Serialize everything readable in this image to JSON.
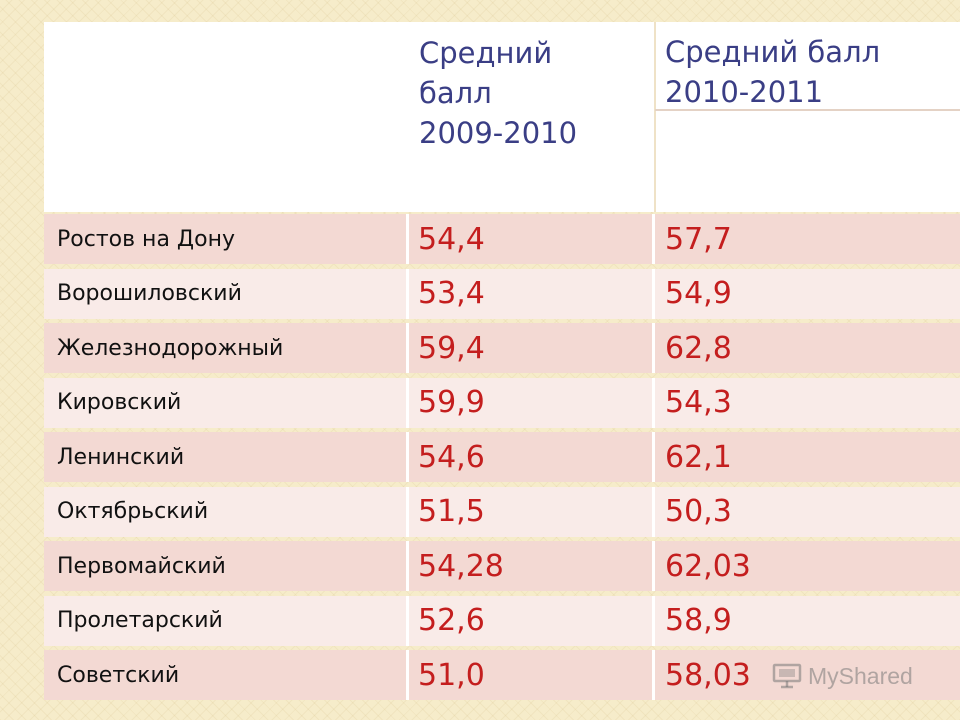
{
  "table": {
    "headers": {
      "district": "",
      "year1": "Средний\nбалл\n2009-2010",
      "year2": "Средний  балл\n2010-2011"
    },
    "rows": [
      {
        "district": "Ростов на  Дону",
        "v2009_2010": "54,4",
        "v2010_2011": "57,7"
      },
      {
        "district": "Ворошиловский",
        "v2009_2010": "53,4",
        "v2010_2011": "54,9"
      },
      {
        "district": "Железнодорожный",
        "v2009_2010": "59,4",
        "v2010_2011": "62,8"
      },
      {
        "district": "Кировский",
        "v2009_2010": "59,9",
        "v2010_2011": "54,3"
      },
      {
        "district": "Ленинский",
        "v2009_2010": "54,6",
        "v2010_2011": "62,1"
      },
      {
        "district": "Октябрьский",
        "v2009_2010": "51,5",
        "v2010_2011": "50,3"
      },
      {
        "district": "Первомайский",
        "v2009_2010": "54,28",
        "v2010_2011": "62,03"
      },
      {
        "district": "Пролетарский",
        "v2009_2010": "52,6",
        "v2010_2011": "58,9"
      },
      {
        "district": "Советский",
        "v2009_2010": "51,0",
        "v2010_2011": "58,03"
      }
    ]
  },
  "watermark": {
    "text": "MyShared",
    "icon": "presentation-icon"
  },
  "colors": {
    "value_text": "#c41e1e",
    "header_text": "#3a3e85",
    "row_dark": "#f3d9d3",
    "row_light": "#f9ebe8"
  }
}
